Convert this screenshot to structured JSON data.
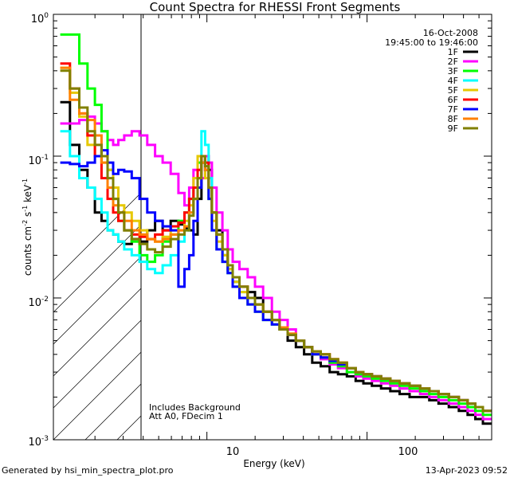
{
  "chart_data": {
    "type": "line",
    "title": "Count Spectra for RHESSI Front Segments",
    "date": "16-Oct-2008",
    "time_range": "19:45:00 to 19:46:00",
    "xlabel": "Energy (keV)",
    "ylabel": "counts cm^-2 s^-1 keV^-1",
    "xscale": "log",
    "yscale": "log",
    "xlim": [
      1.1,
      600
    ],
    "ylim": [
      0.001,
      1.0
    ],
    "x_tick_labels": [
      "10",
      "100"
    ],
    "y_tick_labels": [
      "10^0",
      "10^-1",
      "10^-2",
      "10^-3"
    ],
    "hatched_region_keV": [
      1.1,
      3.0
    ],
    "annotation_lines": [
      "Includes Background",
      "Att A0, FDecim 1"
    ],
    "footer_left": "Generated by hsi_min_spectra_plot.pro",
    "footer_right": "13-Apr-2023 09:52",
    "legend_position": "top-right",
    "series": [
      {
        "name": "1F",
        "color": "#000000",
        "x": [
          1.3,
          1.5,
          1.7,
          1.9,
          2.1,
          2.3,
          2.5,
          2.7,
          2.9,
          3.2,
          3.6,
          4.0,
          4.5,
          5.0,
          5.6,
          6.3,
          7.0,
          7.5,
          8.0,
          8.5,
          9.0,
          9.5,
          10.0,
          10.5,
          11.0,
          12,
          13,
          14,
          15,
          17,
          19,
          21,
          24,
          27,
          30,
          34,
          38,
          43,
          48,
          55,
          62,
          70,
          80,
          90,
          100,
          115,
          130,
          150,
          170,
          200,
          230,
          260,
          300,
          350,
          400,
          450,
          500,
          560
        ],
        "values": [
          0.24,
          0.12,
          0.08,
          0.06,
          0.04,
          0.035,
          0.03,
          0.028,
          0.025,
          0.024,
          0.026,
          0.025,
          0.03,
          0.035,
          0.03,
          0.035,
          0.033,
          0.031,
          0.03,
          0.028,
          0.05,
          0.09,
          0.1,
          0.08,
          0.04,
          0.03,
          0.02,
          0.016,
          0.013,
          0.012,
          0.011,
          0.01,
          0.008,
          0.007,
          0.006,
          0.005,
          0.0045,
          0.004,
          0.0035,
          0.0033,
          0.003,
          0.0029,
          0.0028,
          0.0026,
          0.0025,
          0.0024,
          0.0023,
          0.0022,
          0.0021,
          0.002,
          0.002,
          0.0019,
          0.0018,
          0.0017,
          0.0016,
          0.0015,
          0.0014,
          0.0013
        ]
      },
      {
        "name": "2F",
        "color": "#ff00ff",
        "x": [
          1.3,
          1.5,
          1.7,
          1.9,
          2.1,
          2.3,
          2.5,
          2.7,
          2.9,
          3.2,
          3.6,
          4.0,
          4.5,
          5.0,
          5.6,
          6.3,
          7.0,
          7.5,
          8.0,
          8.5,
          9.0,
          9.5,
          10.0,
          10.5,
          11.0,
          12,
          13,
          14,
          15,
          17,
          19,
          21,
          24,
          27,
          30,
          34,
          38,
          43,
          48,
          55,
          62,
          70,
          80,
          90,
          100,
          115,
          130,
          150,
          170,
          200,
          230,
          260,
          300,
          350,
          400,
          450,
          500,
          560
        ],
        "values": [
          0.17,
          0.17,
          0.18,
          0.19,
          0.17,
          0.15,
          0.13,
          0.12,
          0.13,
          0.14,
          0.15,
          0.14,
          0.12,
          0.1,
          0.09,
          0.075,
          0.055,
          0.045,
          0.06,
          0.08,
          0.08,
          0.07,
          0.1,
          0.09,
          0.06,
          0.04,
          0.03,
          0.022,
          0.018,
          0.016,
          0.014,
          0.012,
          0.01,
          0.008,
          0.007,
          0.006,
          0.005,
          0.0045,
          0.004,
          0.0037,
          0.0034,
          0.0032,
          0.003,
          0.0028,
          0.0027,
          0.0026,
          0.0025,
          0.0024,
          0.0023,
          0.0022,
          0.0021,
          0.002,
          0.0019,
          0.0018,
          0.0017,
          0.0016,
          0.0015,
          0.0014
        ]
      },
      {
        "name": "3F",
        "color": "#00ff00",
        "x": [
          1.3,
          1.5,
          1.7,
          1.9,
          2.1,
          2.3,
          2.5,
          2.7,
          2.9,
          3.2,
          3.6,
          4.0,
          4.5,
          5.0,
          5.6,
          6.3,
          7.0,
          7.5,
          8.0,
          8.5,
          9.0,
          9.5,
          10.0,
          10.5,
          11.0,
          12,
          13,
          14,
          15,
          17,
          19,
          21,
          24,
          27,
          30,
          34,
          38,
          43,
          48,
          55,
          62,
          70,
          80,
          90,
          100,
          115,
          130,
          150,
          170,
          200,
          230,
          260,
          300,
          350,
          400,
          450,
          500,
          560
        ],
        "values": [
          0.72,
          0.72,
          0.45,
          0.3,
          0.23,
          0.15,
          0.08,
          0.05,
          0.035,
          0.03,
          0.025,
          0.02,
          0.018,
          0.02,
          0.025,
          0.028,
          0.035,
          0.04,
          0.05,
          0.06,
          0.09,
          0.1,
          0.08,
          0.05,
          0.03,
          0.022,
          0.018,
          0.015,
          0.012,
          0.01,
          0.009,
          0.008,
          0.007,
          0.0065,
          0.006,
          0.0055,
          0.005,
          0.0045,
          0.004,
          0.0038,
          0.0035,
          0.0033,
          0.003,
          0.0029,
          0.0028,
          0.0027,
          0.0026,
          0.0025,
          0.0024,
          0.0023,
          0.0022,
          0.0021,
          0.002,
          0.0019,
          0.0018,
          0.0017,
          0.0016,
          0.0015
        ]
      },
      {
        "name": "4F",
        "color": "#00ffff",
        "x": [
          1.3,
          1.5,
          1.7,
          1.9,
          2.1,
          2.3,
          2.5,
          2.7,
          2.9,
          3.2,
          3.6,
          4.0,
          4.5,
          5.0,
          5.6,
          6.3,
          7.0,
          7.5,
          8.0,
          8.5,
          9.0,
          9.5,
          10.0,
          10.5,
          11.0,
          12,
          13,
          14,
          15,
          17,
          19,
          21,
          24,
          27,
          30,
          34,
          38,
          43,
          48,
          55,
          62,
          70,
          80,
          90,
          100,
          115,
          130,
          150,
          170,
          200,
          230,
          260,
          300,
          350,
          400,
          450,
          500,
          560
        ],
        "values": [
          0.15,
          0.1,
          0.07,
          0.06,
          0.05,
          0.04,
          0.03,
          0.028,
          0.025,
          0.022,
          0.02,
          0.018,
          0.016,
          0.015,
          0.017,
          0.02,
          0.025,
          0.03,
          0.04,
          0.06,
          0.1,
          0.15,
          0.12,
          0.07,
          0.04,
          0.028,
          0.02,
          0.016,
          0.013,
          0.011,
          0.01,
          0.009,
          0.008,
          0.007,
          0.006,
          0.0055,
          0.005,
          0.0045,
          0.004,
          0.0038,
          0.0036,
          0.0034,
          0.0032,
          0.003,
          0.0029,
          0.0028,
          0.0027,
          0.0026,
          0.0025,
          0.0024,
          0.0023,
          0.0022,
          0.0021,
          0.002,
          0.0019,
          0.0018,
          0.0017,
          0.0016
        ]
      },
      {
        "name": "5F",
        "color": "#e6c800",
        "x": [
          1.3,
          1.5,
          1.7,
          1.9,
          2.1,
          2.3,
          2.5,
          2.7,
          2.9,
          3.2,
          3.6,
          4.0,
          4.5,
          5.0,
          5.6,
          6.3,
          7.0,
          7.5,
          8.0,
          8.5,
          9.0,
          9.5,
          10.0,
          10.5,
          11.0,
          12,
          13,
          14,
          15,
          17,
          19,
          21,
          24,
          27,
          30,
          34,
          38,
          43,
          48,
          55,
          62,
          70,
          80,
          90,
          100,
          115,
          130,
          150,
          170,
          200,
          230,
          260,
          300,
          350,
          400,
          450,
          500,
          560
        ],
        "values": [
          0.42,
          0.28,
          0.19,
          0.12,
          0.1,
          0.09,
          0.08,
          0.06,
          0.045,
          0.04,
          0.035,
          0.03,
          0.026,
          0.025,
          0.027,
          0.03,
          0.03,
          0.035,
          0.045,
          0.07,
          0.1,
          0.09,
          0.07,
          0.05,
          0.035,
          0.025,
          0.02,
          0.016,
          0.013,
          0.011,
          0.01,
          0.009,
          0.008,
          0.007,
          0.006,
          0.0055,
          0.005,
          0.0045,
          0.004,
          0.0038,
          0.0036,
          0.0034,
          0.0032,
          0.003,
          0.0029,
          0.0028,
          0.0027,
          0.0026,
          0.0025,
          0.0024,
          0.0023,
          0.0022,
          0.0021,
          0.002,
          0.0019,
          0.0018,
          0.0017,
          0.0016
        ]
      },
      {
        "name": "6F",
        "color": "#ff0000",
        "x": [
          1.3,
          1.5,
          1.7,
          1.9,
          2.1,
          2.3,
          2.5,
          2.7,
          2.9,
          3.2,
          3.6,
          4.0,
          4.5,
          5.0,
          5.6,
          6.3,
          7.0,
          7.5,
          8.0,
          8.5,
          9.0,
          9.5,
          10.0,
          10.5,
          11.0,
          12,
          13,
          14,
          15,
          17,
          19,
          21,
          24,
          27,
          30,
          34,
          38,
          43,
          48,
          55,
          62,
          70,
          80,
          90,
          100,
          115,
          130,
          150,
          170,
          200,
          230,
          260,
          300,
          350,
          400,
          450,
          500,
          560
        ],
        "values": [
          0.45,
          0.3,
          0.2,
          0.14,
          0.1,
          0.07,
          0.05,
          0.04,
          0.035,
          0.03,
          0.028,
          0.027,
          0.026,
          0.028,
          0.03,
          0.032,
          0.034,
          0.04,
          0.05,
          0.06,
          0.08,
          0.1,
          0.09,
          0.06,
          0.04,
          0.028,
          0.022,
          0.017,
          0.014,
          0.012,
          0.01,
          0.009,
          0.008,
          0.007,
          0.006,
          0.0055,
          0.005,
          0.0045,
          0.0042,
          0.004,
          0.0037,
          0.0035,
          0.0032,
          0.003,
          0.0029,
          0.0028,
          0.0027,
          0.0026,
          0.0025,
          0.0024,
          0.0023,
          0.0022,
          0.0021,
          0.002,
          0.0019,
          0.0018,
          0.0017,
          0.0016
        ]
      },
      {
        "name": "7F",
        "color": "#0000ff",
        "x": [
          1.3,
          1.5,
          1.7,
          1.9,
          2.1,
          2.3,
          2.5,
          2.7,
          2.9,
          3.2,
          3.6,
          4.0,
          4.5,
          5.0,
          5.6,
          6.3,
          7.0,
          7.5,
          8.0,
          8.5,
          9.0,
          9.5,
          10.0,
          10.5,
          11.0,
          12,
          13,
          14,
          15,
          17,
          19,
          21,
          24,
          27,
          30,
          34,
          38,
          43,
          48,
          55,
          62,
          70,
          80,
          90,
          100,
          115,
          130,
          150,
          170,
          200,
          230,
          260,
          300,
          350,
          400,
          450,
          500,
          560
        ],
        "values": [
          0.09,
          0.088,
          0.085,
          0.09,
          0.1,
          0.11,
          0.09,
          0.075,
          0.08,
          0.078,
          0.07,
          0.05,
          0.04,
          0.035,
          0.032,
          0.03,
          0.012,
          0.016,
          0.02,
          0.035,
          0.06,
          0.09,
          0.08,
          0.05,
          0.03,
          0.022,
          0.018,
          0.015,
          0.012,
          0.01,
          0.009,
          0.008,
          0.007,
          0.0065,
          0.006,
          0.0055,
          0.005,
          0.0045,
          0.004,
          0.0038,
          0.0036,
          0.0034,
          0.0032,
          0.003,
          0.0029,
          0.0028,
          0.0027,
          0.0026,
          0.0025,
          0.0024,
          0.0023,
          0.0022,
          0.0021,
          0.002,
          0.0019,
          0.0018,
          0.0017,
          0.0016
        ]
      },
      {
        "name": "8F",
        "color": "#ff8000",
        "x": [
          1.3,
          1.5,
          1.7,
          1.9,
          2.1,
          2.3,
          2.5,
          2.7,
          2.9,
          3.2,
          3.6,
          4.0,
          4.5,
          5.0,
          5.6,
          6.3,
          7.0,
          7.5,
          8.0,
          8.5,
          9.0,
          9.5,
          10.0,
          10.5,
          11.0,
          12,
          13,
          14,
          15,
          17,
          19,
          21,
          24,
          27,
          30,
          34,
          38,
          43,
          48,
          55,
          62,
          70,
          80,
          90,
          100,
          115,
          130,
          150,
          170,
          200,
          230,
          260,
          300,
          350,
          400,
          450,
          500,
          560
        ],
        "values": [
          0.42,
          0.25,
          0.2,
          0.18,
          0.14,
          0.09,
          0.06,
          0.045,
          0.04,
          0.035,
          0.03,
          0.028,
          0.026,
          0.025,
          0.026,
          0.028,
          0.03,
          0.032,
          0.04,
          0.05,
          0.07,
          0.09,
          0.08,
          0.06,
          0.04,
          0.028,
          0.022,
          0.017,
          0.014,
          0.012,
          0.01,
          0.009,
          0.008,
          0.007,
          0.0062,
          0.0056,
          0.005,
          0.0045,
          0.0042,
          0.004,
          0.0037,
          0.0035,
          0.0032,
          0.003,
          0.0029,
          0.0028,
          0.0027,
          0.0026,
          0.0025,
          0.0024,
          0.0023,
          0.0022,
          0.0021,
          0.002,
          0.0019,
          0.0018,
          0.0017,
          0.0016
        ]
      },
      {
        "name": "9F",
        "color": "#808000",
        "x": [
          1.3,
          1.5,
          1.7,
          1.9,
          2.1,
          2.3,
          2.5,
          2.7,
          2.9,
          3.2,
          3.6,
          4.0,
          4.5,
          5.0,
          5.6,
          6.3,
          7.0,
          7.5,
          8.0,
          8.5,
          9.0,
          9.5,
          10.0,
          10.5,
          11.0,
          12,
          13,
          14,
          15,
          17,
          19,
          21,
          24,
          27,
          30,
          34,
          38,
          43,
          48,
          55,
          62,
          70,
          80,
          90,
          100,
          115,
          130,
          150,
          170,
          200,
          230,
          260,
          300,
          350,
          400,
          450,
          500,
          560
        ],
        "values": [
          0.4,
          0.3,
          0.22,
          0.15,
          0.12,
          0.1,
          0.07,
          0.05,
          0.04,
          0.03,
          0.026,
          0.024,
          0.022,
          0.021,
          0.023,
          0.026,
          0.028,
          0.03,
          0.038,
          0.05,
          0.07,
          0.1,
          0.085,
          0.06,
          0.04,
          0.028,
          0.022,
          0.017,
          0.014,
          0.012,
          0.01,
          0.009,
          0.008,
          0.007,
          0.006,
          0.0055,
          0.005,
          0.0045,
          0.0042,
          0.004,
          0.0037,
          0.0035,
          0.0032,
          0.003,
          0.0029,
          0.0028,
          0.0027,
          0.0026,
          0.0025,
          0.0024,
          0.0023,
          0.0022,
          0.0021,
          0.002,
          0.0019,
          0.0018,
          0.0017,
          0.0016
        ]
      }
    ]
  }
}
